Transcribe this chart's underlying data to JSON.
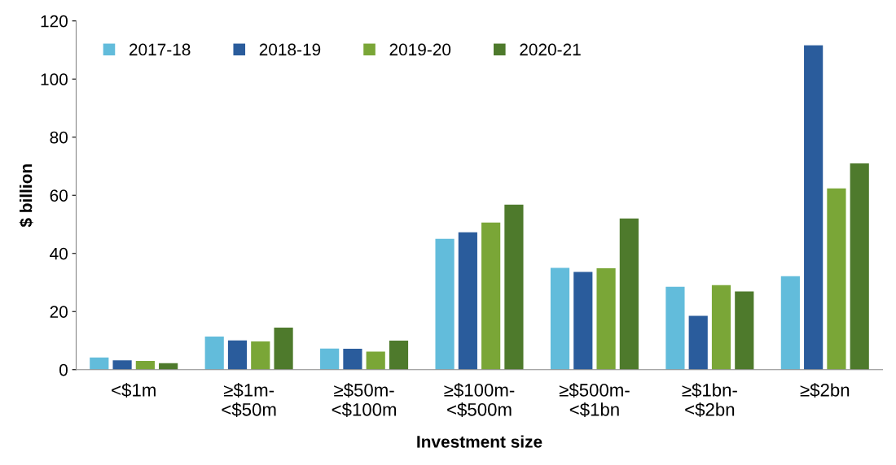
{
  "chart_data": {
    "type": "bar",
    "xlabel": "Investment size",
    "ylabel": "$ billion",
    "categories": [
      "<$1m",
      "≥$1m-\n<$50m",
      "≥$50m-\n<$100m",
      "≥$100m-\n<$500m",
      "≥$500m-\n<$1bn",
      "≥$1bn-\n<$2bn",
      "≥$2bn"
    ],
    "series": [
      {
        "name": "2017-18",
        "color": "#62bcdb",
        "values": [
          4.2,
          11.4,
          7.3,
          45.0,
          35.0,
          28.5,
          32.2
        ]
      },
      {
        "name": "2018-19",
        "color": "#2a5c9c",
        "values": [
          3.2,
          10.1,
          7.2,
          47.3,
          33.6,
          18.5,
          111.6
        ]
      },
      {
        "name": "2019-20",
        "color": "#7aa637",
        "values": [
          3.0,
          9.7,
          6.2,
          50.6,
          34.9,
          29.1,
          62.4
        ]
      },
      {
        "name": "2020-21",
        "color": "#4e7a2c",
        "values": [
          2.2,
          14.5,
          10.0,
          56.8,
          52.0,
          26.9,
          71.0
        ]
      }
    ],
    "ylim": [
      0,
      120
    ],
    "yticks": [
      0,
      20,
      40,
      60,
      80,
      100,
      120
    ],
    "grid": false,
    "legend": "top"
  }
}
